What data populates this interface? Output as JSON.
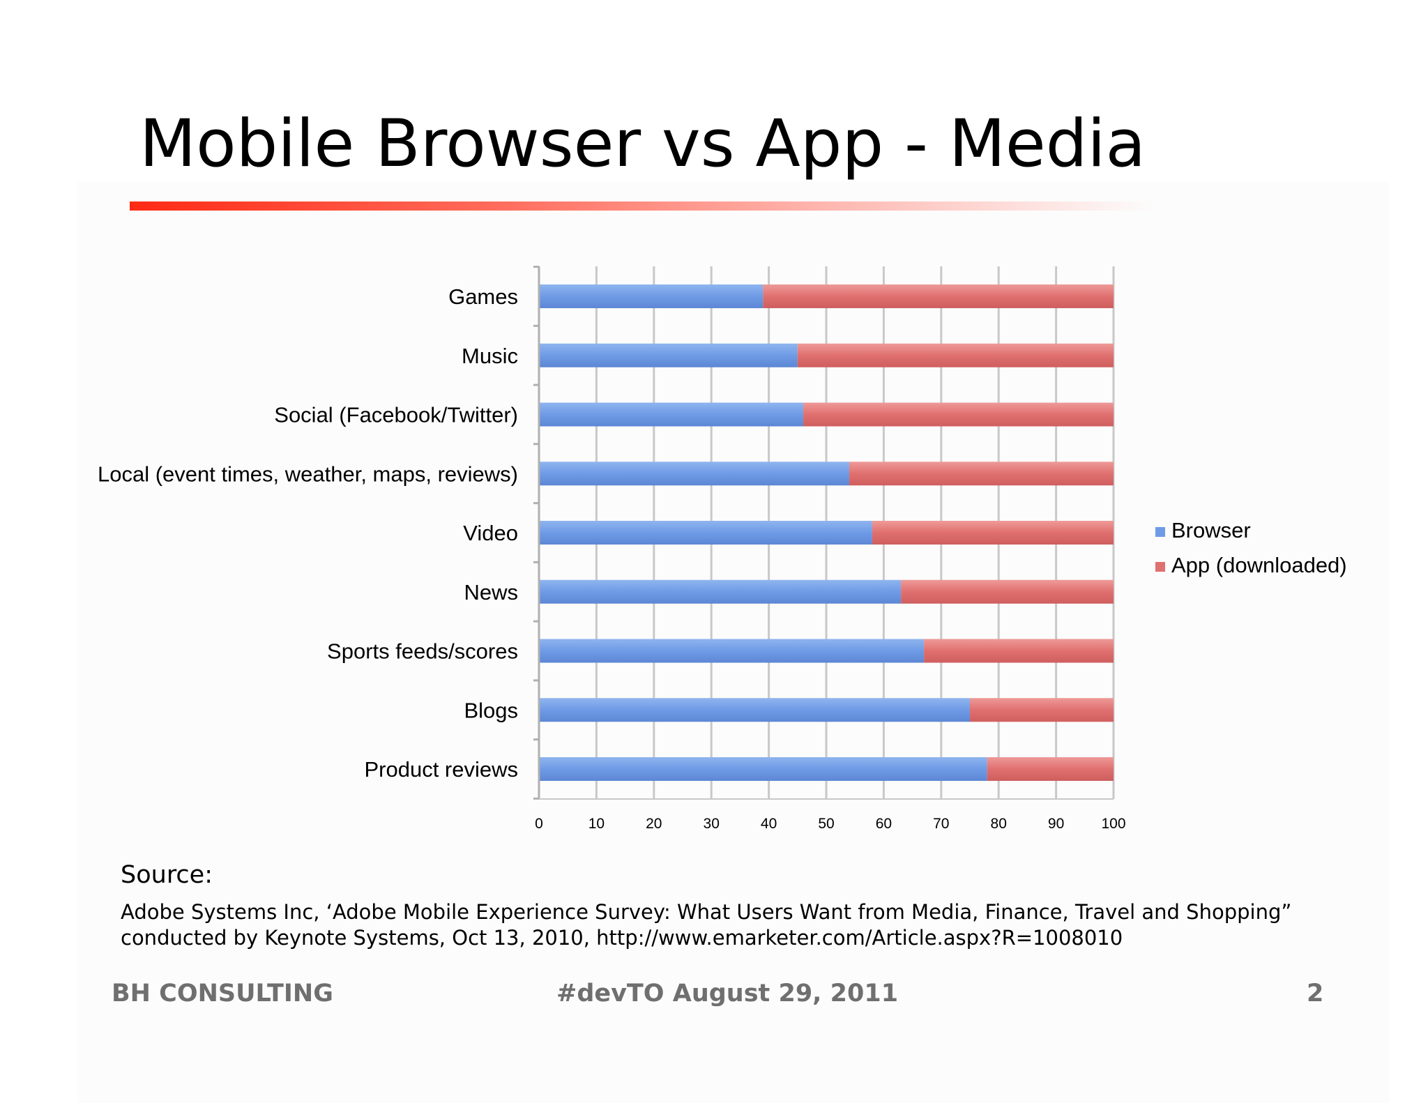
{
  "slide": {
    "title": "Mobile Browser vs App - Media",
    "source_heading": "Source:",
    "source_lines": [
      "Adobe Systems Inc, ‘Adobe Mobile Experience Survey: What Users Want from Media, Finance, Travel and Shopping”",
      "conducted by Keynote Systems, Oct 13, 2010, http://www.emarketer.com/Article.aspx?R=1008010"
    ],
    "footer": {
      "left": "BH CONSULTING",
      "center": "#devTO August 29, 2011",
      "page_number": "2"
    }
  },
  "chart_data": {
    "type": "bar",
    "orientation": "horizontal",
    "stacked": true,
    "categories": [
      "Games",
      "Music",
      "Social (Facebook/Twitter)",
      "Local (event times, weather, maps, reviews)",
      "Video",
      "News",
      "Sports feeds/scores",
      "Blogs",
      "Product reviews"
    ],
    "series": [
      {
        "name": "Browser",
        "values": [
          39,
          45,
          46,
          54,
          58,
          63,
          67,
          75,
          78
        ],
        "color": "#6f9be6"
      },
      {
        "name": "App (downloaded)",
        "values": [
          61,
          55,
          54,
          46,
          42,
          37,
          33,
          25,
          22
        ],
        "color": "#e07070"
      }
    ],
    "xlim": [
      0,
      100
    ],
    "xticks": [
      "0",
      "10",
      "20",
      "30",
      "40",
      "50",
      "60",
      "70",
      "80",
      "90",
      "100"
    ],
    "grid": "vertical",
    "legend_position": "right"
  }
}
